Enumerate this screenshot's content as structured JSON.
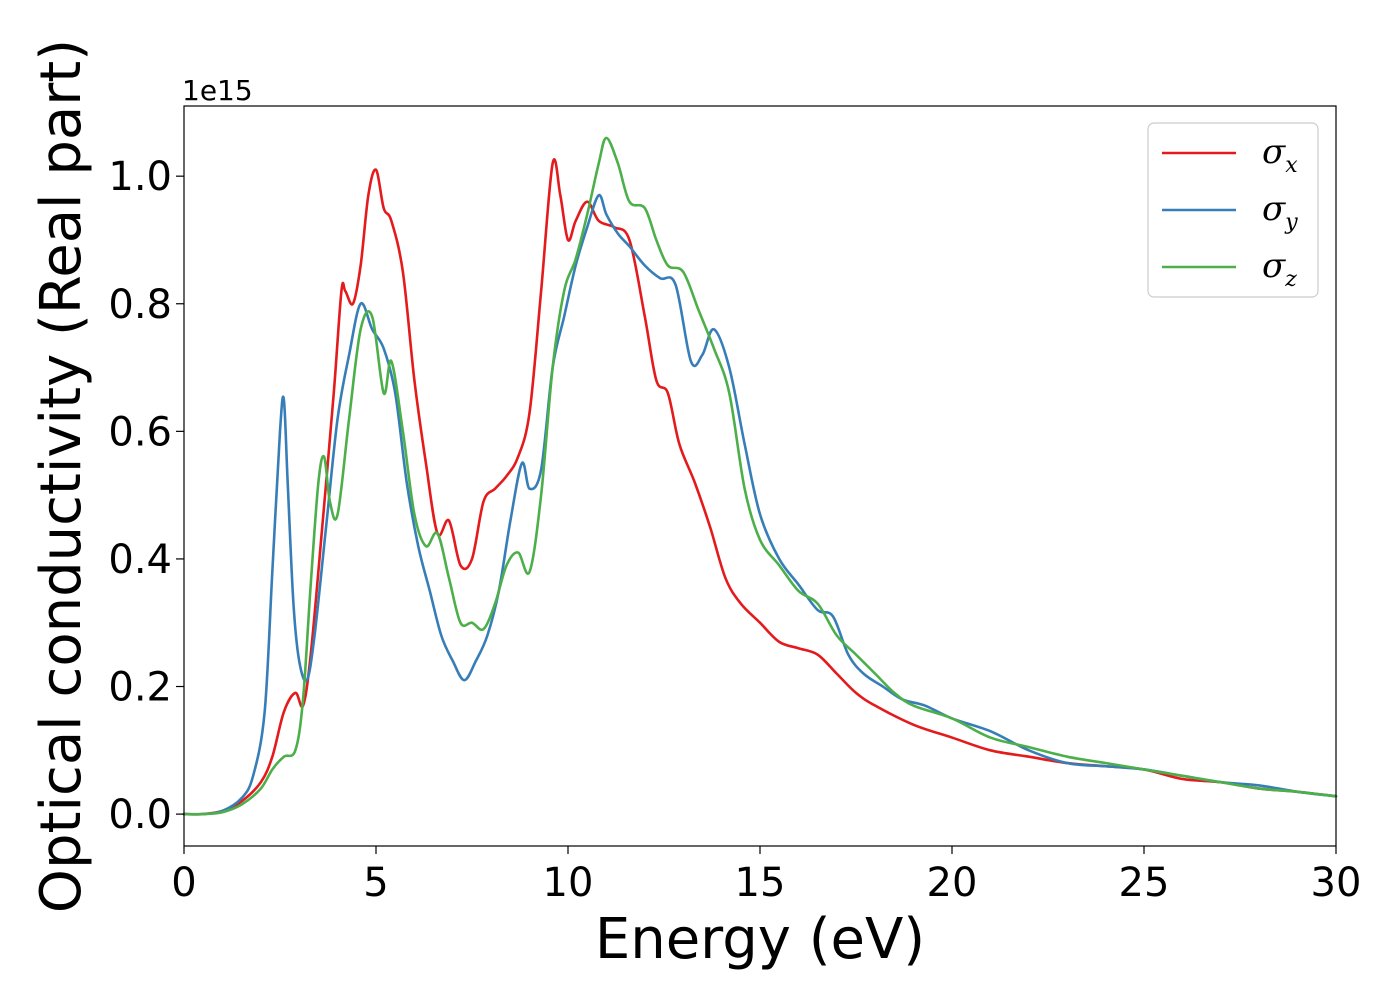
{
  "chart_data": {
    "type": "line",
    "xlabel": "Energy (eV)",
    "ylabel": "Optical conductivity (Real part)",
    "y_offset_label": "1e15",
    "xlim": [
      0,
      30
    ],
    "ylim": [
      -0.05,
      1.11
    ],
    "x_ticks": [
      0,
      5,
      10,
      15,
      20,
      25,
      30
    ],
    "x_tick_labels": [
      "0",
      "5",
      "10",
      "15",
      "20",
      "25",
      "30"
    ],
    "y_ticks": [
      0.0,
      0.2,
      0.4,
      0.6,
      0.8,
      1.0
    ],
    "y_tick_labels": [
      "0.0",
      "0.2",
      "0.4",
      "0.6",
      "0.8",
      "1.0"
    ],
    "grid": false,
    "legend_position": "top-right",
    "series": [
      {
        "name": "σx",
        "symbol": "σ",
        "subscript": "x",
        "color": "#e41a1c",
        "x": [
          0,
          0.5,
          1,
          1.5,
          2,
          2.3,
          2.6,
          2.9,
          3.1,
          3.3,
          3.6,
          3.9,
          4.1,
          4.2,
          4.4,
          4.6,
          4.8,
          5.0,
          5.2,
          5.4,
          5.7,
          6.0,
          6.3,
          6.6,
          6.9,
          7.2,
          7.5,
          7.8,
          8.1,
          8.4,
          8.7,
          9.0,
          9.3,
          9.6,
          9.8,
          10.0,
          10.2,
          10.5,
          10.8,
          11.2,
          11.6,
          12.0,
          12.3,
          12.6,
          12.9,
          13.3,
          13.7,
          14.1,
          14.5,
          15.0,
          15.5,
          16.0,
          16.5,
          17.0,
          17.5,
          18.0,
          19.0,
          20.0,
          21.0,
          22.0,
          23.0,
          24.0,
          25.0,
          26.0,
          27.0,
          28.0,
          29.0,
          30.0
        ],
        "values": [
          0,
          0.0,
          0.005,
          0.02,
          0.05,
          0.09,
          0.16,
          0.19,
          0.17,
          0.25,
          0.45,
          0.66,
          0.82,
          0.82,
          0.8,
          0.86,
          0.97,
          1.01,
          0.95,
          0.93,
          0.85,
          0.68,
          0.55,
          0.44,
          0.46,
          0.39,
          0.4,
          0.49,
          0.51,
          0.53,
          0.56,
          0.63,
          0.82,
          1.02,
          0.97,
          0.9,
          0.93,
          0.96,
          0.93,
          0.92,
          0.9,
          0.78,
          0.68,
          0.66,
          0.58,
          0.52,
          0.45,
          0.37,
          0.33,
          0.3,
          0.27,
          0.26,
          0.25,
          0.22,
          0.19,
          0.17,
          0.14,
          0.12,
          0.1,
          0.09,
          0.08,
          0.075,
          0.07,
          0.055,
          0.05,
          0.04,
          0.035,
          0.028
        ]
      },
      {
        "name": "σy",
        "symbol": "σ",
        "subscript": "y",
        "color": "#377eb8",
        "x": [
          0,
          0.5,
          1,
          1.5,
          1.8,
          2.1,
          2.3,
          2.5,
          2.6,
          2.7,
          2.85,
          3.0,
          3.2,
          3.4,
          3.7,
          4.0,
          4.3,
          4.6,
          4.9,
          5.2,
          5.5,
          5.8,
          6.1,
          6.4,
          6.7,
          7.0,
          7.3,
          7.6,
          7.9,
          8.2,
          8.5,
          8.8,
          9.0,
          9.3,
          9.6,
          9.9,
          10.2,
          10.5,
          10.8,
          11.0,
          11.3,
          11.6,
          12.0,
          12.4,
          12.8,
          13.2,
          13.5,
          13.8,
          14.2,
          14.6,
          15.0,
          15.5,
          16.0,
          16.5,
          16.9,
          17.3,
          17.7,
          18.2,
          18.7,
          19.3,
          20.0,
          21.0,
          22.0,
          23.0,
          24.0,
          25.0,
          26.0,
          27.0,
          28.0,
          29.0,
          30.0
        ],
        "values": [
          0,
          0.0,
          0.005,
          0.025,
          0.06,
          0.16,
          0.38,
          0.6,
          0.65,
          0.52,
          0.33,
          0.24,
          0.21,
          0.28,
          0.45,
          0.62,
          0.72,
          0.8,
          0.76,
          0.73,
          0.66,
          0.52,
          0.42,
          0.35,
          0.28,
          0.24,
          0.21,
          0.24,
          0.28,
          0.35,
          0.46,
          0.55,
          0.51,
          0.54,
          0.7,
          0.78,
          0.86,
          0.92,
          0.97,
          0.94,
          0.91,
          0.89,
          0.86,
          0.84,
          0.83,
          0.71,
          0.72,
          0.76,
          0.7,
          0.58,
          0.47,
          0.4,
          0.36,
          0.32,
          0.31,
          0.25,
          0.22,
          0.2,
          0.18,
          0.17,
          0.15,
          0.13,
          0.1,
          0.08,
          0.075,
          0.07,
          0.06,
          0.05,
          0.045,
          0.035,
          0.028
        ]
      },
      {
        "name": "σz",
        "symbol": "σ",
        "subscript": "z",
        "color": "#4daf4a",
        "x": [
          0,
          0.5,
          1,
          1.5,
          2,
          2.3,
          2.6,
          2.9,
          3.1,
          3.3,
          3.5,
          3.65,
          3.8,
          4.0,
          4.3,
          4.6,
          4.9,
          5.2,
          5.4,
          5.7,
          6.0,
          6.3,
          6.6,
          6.9,
          7.2,
          7.5,
          7.8,
          8.1,
          8.4,
          8.7,
          9.0,
          9.3,
          9.6,
          9.9,
          10.2,
          10.5,
          10.8,
          11.0,
          11.3,
          11.6,
          12.0,
          12.3,
          12.6,
          13.0,
          13.4,
          13.8,
          14.2,
          14.6,
          15.0,
          15.5,
          16.0,
          16.5,
          17.0,
          17.5,
          18.0,
          18.5,
          19.0,
          20.0,
          21.0,
          22.0,
          23.0,
          24.0,
          25.0,
          26.0,
          27.0,
          28.0,
          29.0,
          30.0
        ],
        "values": [
          0,
          0.0,
          0.003,
          0.015,
          0.04,
          0.07,
          0.09,
          0.1,
          0.18,
          0.36,
          0.52,
          0.56,
          0.49,
          0.47,
          0.62,
          0.76,
          0.78,
          0.66,
          0.71,
          0.6,
          0.47,
          0.42,
          0.44,
          0.37,
          0.3,
          0.3,
          0.29,
          0.33,
          0.39,
          0.41,
          0.38,
          0.5,
          0.7,
          0.82,
          0.87,
          0.94,
          1.02,
          1.06,
          1.02,
          0.96,
          0.95,
          0.9,
          0.86,
          0.85,
          0.79,
          0.73,
          0.66,
          0.51,
          0.43,
          0.39,
          0.35,
          0.33,
          0.28,
          0.25,
          0.22,
          0.19,
          0.17,
          0.15,
          0.12,
          0.105,
          0.09,
          0.08,
          0.07,
          0.06,
          0.05,
          0.04,
          0.035,
          0.028
        ]
      }
    ]
  }
}
